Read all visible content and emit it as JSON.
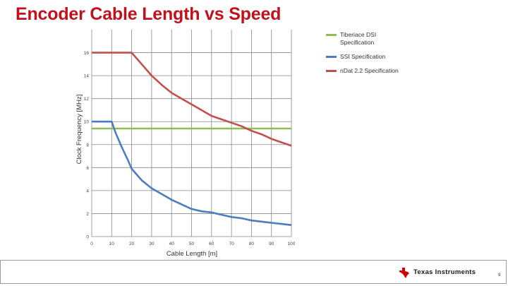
{
  "slide": {
    "title": "Encoder Cable Length vs Speed",
    "page_number": "9",
    "brand": "Texas Instruments"
  },
  "colors": {
    "title": "#c0121c",
    "green": "#8cbf4f",
    "blue": "#4a7ec0",
    "red": "#c0504d",
    "grid": "#888888",
    "logo_red": "#cc0000"
  },
  "chart_data": {
    "type": "line",
    "title": "",
    "xlabel": "Cable Length [m]",
    "ylabel": "Clock Frequency [MHz]",
    "xlim": [
      0,
      100
    ],
    "ylim": [
      0,
      18
    ],
    "xticks": [
      "0",
      "10",
      "20",
      "30",
      "40",
      "50",
      "60",
      "70",
      "80",
      "90",
      "100"
    ],
    "yticks": [
      "0",
      "2",
      "4",
      "6",
      "8",
      "10",
      "12",
      "14",
      "16"
    ],
    "grid": "vertical and horizontal",
    "legend_position": "top-right outside",
    "series": [
      {
        "name": "Tiberiace DSI Specification",
        "color": "#8cbf4f",
        "x": [
          0,
          100
        ],
        "y": [
          9.4,
          9.4
        ]
      },
      {
        "name": "SSI Specification",
        "color": "#4a7ec0",
        "x": [
          0,
          10,
          12,
          15,
          18,
          20,
          25,
          30,
          35,
          40,
          45,
          50,
          55,
          60,
          65,
          70,
          75,
          80,
          85,
          90,
          95,
          100
        ],
        "y": [
          10,
          10,
          9.0,
          7.8,
          6.7,
          5.9,
          4.9,
          4.2,
          3.7,
          3.2,
          2.8,
          2.4,
          2.2,
          2.1,
          1.9,
          1.7,
          1.6,
          1.4,
          1.3,
          1.2,
          1.1,
          1.0
        ]
      },
      {
        "name": "nDat 2.2 Specification",
        "color": "#c0504d",
        "x": [
          0,
          20,
          25,
          30,
          35,
          40,
          45,
          50,
          55,
          60,
          65,
          70,
          75,
          80,
          85,
          90,
          95,
          100
        ],
        "y": [
          16,
          16,
          15.0,
          14.0,
          13.2,
          12.5,
          12.0,
          11.5,
          11.0,
          10.5,
          10.2,
          9.9,
          9.6,
          9.2,
          8.9,
          8.5,
          8.2,
          7.9
        ]
      }
    ]
  }
}
